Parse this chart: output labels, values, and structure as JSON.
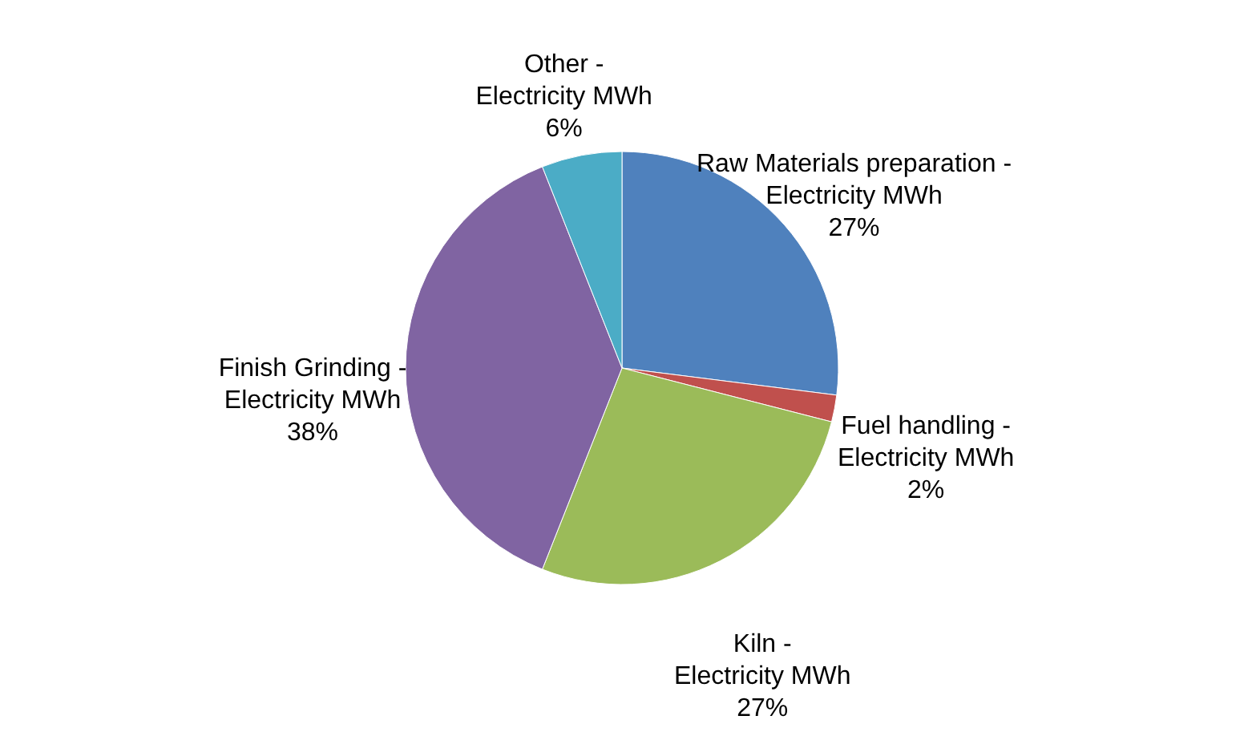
{
  "chart_data": {
    "type": "pie",
    "categories": [
      "Raw Materials preparation - Electricity MWh",
      "Fuel handling - Electricity MWh",
      "Kiln - Electricity MWh",
      "Finish Grinding - Electricity MWh",
      "Other - Electricity MWh"
    ],
    "values": [
      27,
      2,
      27,
      38,
      6
    ],
    "colors": [
      "#4f81bd",
      "#c0504d",
      "#9bbb59",
      "#8064a2",
      "#4bacc6"
    ],
    "value_labels": [
      "27%",
      "2%",
      "27%",
      "38%",
      "6%"
    ],
    "legend": false
  }
}
